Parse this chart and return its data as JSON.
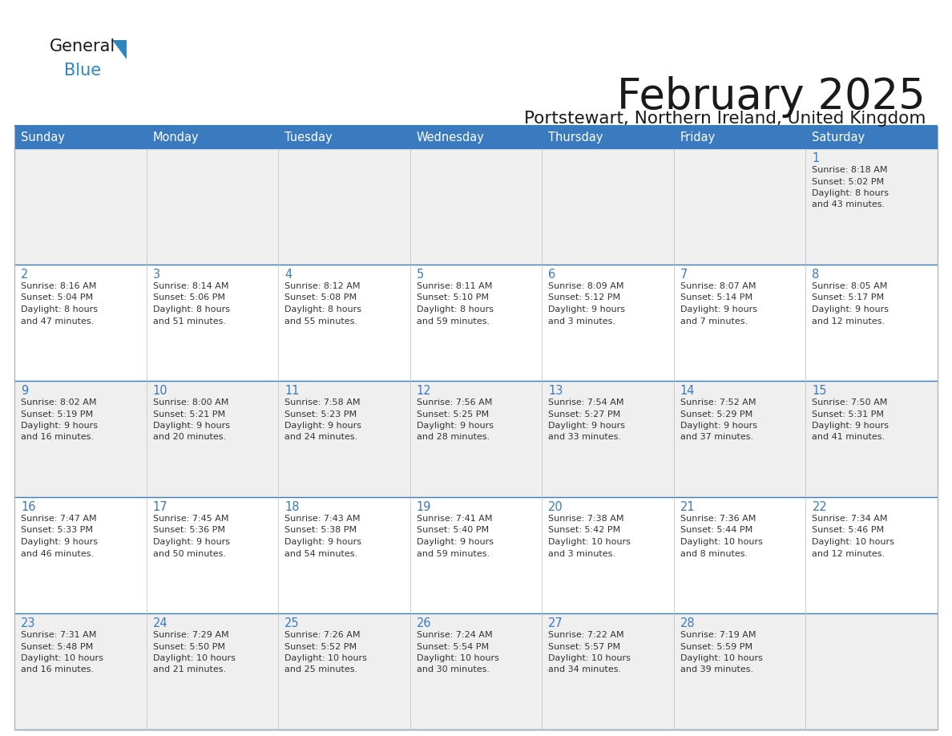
{
  "title": "February 2025",
  "subtitle": "Portstewart, Northern Ireland, United Kingdom",
  "days_of_week": [
    "Sunday",
    "Monday",
    "Tuesday",
    "Wednesday",
    "Thursday",
    "Friday",
    "Saturday"
  ],
  "header_bg": "#3a7bbf",
  "header_text": "#ffffff",
  "cell_bg_odd": "#efefef",
  "cell_bg_even": "#ffffff",
  "border_color": "#3a7bbf",
  "text_color": "#333333",
  "day_number_color": "#3a7bbf",
  "title_color": "#1a1a1a",
  "subtitle_color": "#1a1a1a",
  "weeks": [
    [
      {
        "day": null,
        "info": null
      },
      {
        "day": null,
        "info": null
      },
      {
        "day": null,
        "info": null
      },
      {
        "day": null,
        "info": null
      },
      {
        "day": null,
        "info": null
      },
      {
        "day": null,
        "info": null
      },
      {
        "day": 1,
        "info": "Sunrise: 8:18 AM\nSunset: 5:02 PM\nDaylight: 8 hours\nand 43 minutes."
      }
    ],
    [
      {
        "day": 2,
        "info": "Sunrise: 8:16 AM\nSunset: 5:04 PM\nDaylight: 8 hours\nand 47 minutes."
      },
      {
        "day": 3,
        "info": "Sunrise: 8:14 AM\nSunset: 5:06 PM\nDaylight: 8 hours\nand 51 minutes."
      },
      {
        "day": 4,
        "info": "Sunrise: 8:12 AM\nSunset: 5:08 PM\nDaylight: 8 hours\nand 55 minutes."
      },
      {
        "day": 5,
        "info": "Sunrise: 8:11 AM\nSunset: 5:10 PM\nDaylight: 8 hours\nand 59 minutes."
      },
      {
        "day": 6,
        "info": "Sunrise: 8:09 AM\nSunset: 5:12 PM\nDaylight: 9 hours\nand 3 minutes."
      },
      {
        "day": 7,
        "info": "Sunrise: 8:07 AM\nSunset: 5:14 PM\nDaylight: 9 hours\nand 7 minutes."
      },
      {
        "day": 8,
        "info": "Sunrise: 8:05 AM\nSunset: 5:17 PM\nDaylight: 9 hours\nand 12 minutes."
      }
    ],
    [
      {
        "day": 9,
        "info": "Sunrise: 8:02 AM\nSunset: 5:19 PM\nDaylight: 9 hours\nand 16 minutes."
      },
      {
        "day": 10,
        "info": "Sunrise: 8:00 AM\nSunset: 5:21 PM\nDaylight: 9 hours\nand 20 minutes."
      },
      {
        "day": 11,
        "info": "Sunrise: 7:58 AM\nSunset: 5:23 PM\nDaylight: 9 hours\nand 24 minutes."
      },
      {
        "day": 12,
        "info": "Sunrise: 7:56 AM\nSunset: 5:25 PM\nDaylight: 9 hours\nand 28 minutes."
      },
      {
        "day": 13,
        "info": "Sunrise: 7:54 AM\nSunset: 5:27 PM\nDaylight: 9 hours\nand 33 minutes."
      },
      {
        "day": 14,
        "info": "Sunrise: 7:52 AM\nSunset: 5:29 PM\nDaylight: 9 hours\nand 37 minutes."
      },
      {
        "day": 15,
        "info": "Sunrise: 7:50 AM\nSunset: 5:31 PM\nDaylight: 9 hours\nand 41 minutes."
      }
    ],
    [
      {
        "day": 16,
        "info": "Sunrise: 7:47 AM\nSunset: 5:33 PM\nDaylight: 9 hours\nand 46 minutes."
      },
      {
        "day": 17,
        "info": "Sunrise: 7:45 AM\nSunset: 5:36 PM\nDaylight: 9 hours\nand 50 minutes."
      },
      {
        "day": 18,
        "info": "Sunrise: 7:43 AM\nSunset: 5:38 PM\nDaylight: 9 hours\nand 54 minutes."
      },
      {
        "day": 19,
        "info": "Sunrise: 7:41 AM\nSunset: 5:40 PM\nDaylight: 9 hours\nand 59 minutes."
      },
      {
        "day": 20,
        "info": "Sunrise: 7:38 AM\nSunset: 5:42 PM\nDaylight: 10 hours\nand 3 minutes."
      },
      {
        "day": 21,
        "info": "Sunrise: 7:36 AM\nSunset: 5:44 PM\nDaylight: 10 hours\nand 8 minutes."
      },
      {
        "day": 22,
        "info": "Sunrise: 7:34 AM\nSunset: 5:46 PM\nDaylight: 10 hours\nand 12 minutes."
      }
    ],
    [
      {
        "day": 23,
        "info": "Sunrise: 7:31 AM\nSunset: 5:48 PM\nDaylight: 10 hours\nand 16 minutes."
      },
      {
        "day": 24,
        "info": "Sunrise: 7:29 AM\nSunset: 5:50 PM\nDaylight: 10 hours\nand 21 minutes."
      },
      {
        "day": 25,
        "info": "Sunrise: 7:26 AM\nSunset: 5:52 PM\nDaylight: 10 hours\nand 25 minutes."
      },
      {
        "day": 26,
        "info": "Sunrise: 7:24 AM\nSunset: 5:54 PM\nDaylight: 10 hours\nand 30 minutes."
      },
      {
        "day": 27,
        "info": "Sunrise: 7:22 AM\nSunset: 5:57 PM\nDaylight: 10 hours\nand 34 minutes."
      },
      {
        "day": 28,
        "info": "Sunrise: 7:19 AM\nSunset: 5:59 PM\nDaylight: 10 hours\nand 39 minutes."
      },
      {
        "day": null,
        "info": null
      }
    ]
  ]
}
